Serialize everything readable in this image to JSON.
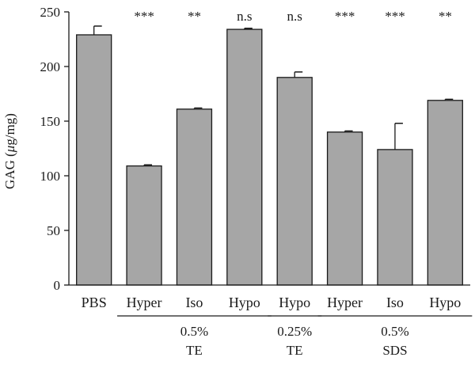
{
  "chart_data": {
    "type": "bar",
    "ylabel_prefix": "GAG (",
    "ylabel_unit_mu": "μ",
    "ylabel_suffix": "g/mg)",
    "ylim": [
      0,
      250
    ],
    "yticks": [
      0,
      50,
      100,
      150,
      200,
      250
    ],
    "grid": false,
    "legend": "none",
    "bar_color": "#a6a6a6",
    "categories": [
      "PBS",
      "Hyper",
      "Iso",
      "Hypo",
      "Hypo",
      "Hyper",
      "Iso",
      "Hypo"
    ],
    "values": [
      229,
      109,
      161,
      234,
      190,
      140,
      124,
      169
    ],
    "errors": [
      8,
      1,
      1,
      1,
      5,
      1,
      24,
      1
    ],
    "significance": [
      "",
      "***",
      "**",
      "n.s",
      "n.s",
      "***",
      "***",
      "**"
    ],
    "groups": [
      {
        "line1": "0.5%",
        "line2": "TE",
        "start": 1,
        "end": 3
      },
      {
        "line1": "0.25%",
        "line2": "TE",
        "start": 4,
        "end": 4
      },
      {
        "line1": "0.5%",
        "line2": "SDS",
        "start": 5,
        "end": 7
      }
    ]
  }
}
